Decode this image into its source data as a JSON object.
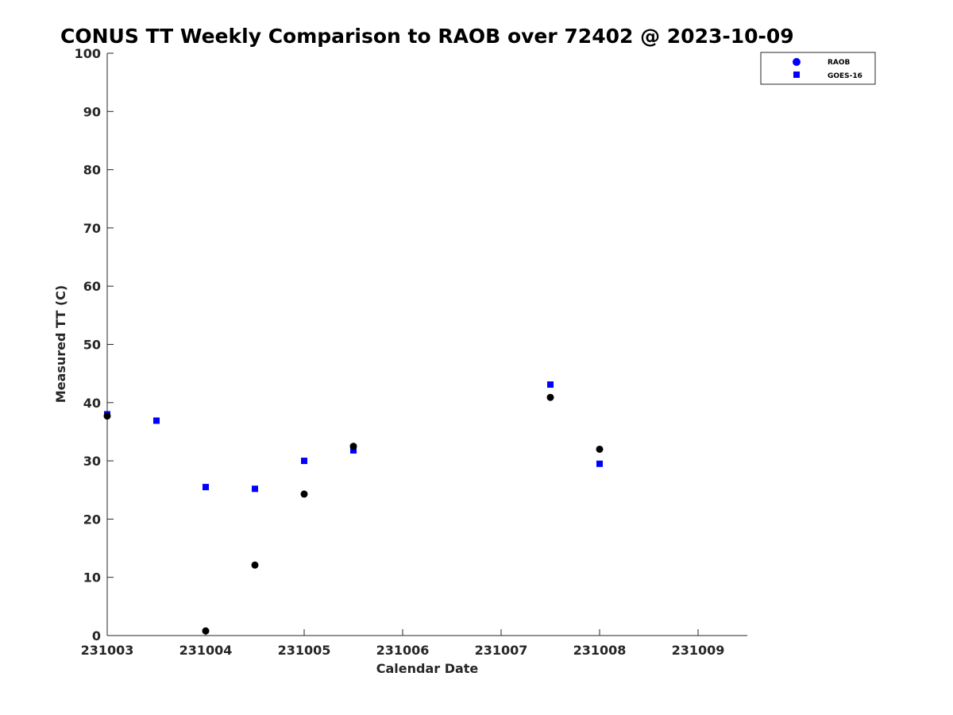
{
  "chart_data": {
    "type": "scatter",
    "title": "CONUS TT Weekly Comparison to RAOB over 72402 @ 2023-10-09",
    "xlabel": "Calendar Date",
    "ylabel": "Measured TT (C)",
    "xlim": [
      231003,
      231009.5
    ],
    "ylim": [
      0,
      100
    ],
    "x_ticks": [
      231003,
      231004,
      231005,
      231006,
      231007,
      231008,
      231009
    ],
    "x_tick_labels": [
      "231003",
      "231004",
      "231005",
      "231006",
      "231007",
      "231008",
      "231009"
    ],
    "y_ticks": [
      0,
      10,
      20,
      30,
      40,
      50,
      60,
      70,
      80,
      90,
      100
    ],
    "y_tick_labels": [
      "0",
      "10",
      "20",
      "30",
      "40",
      "50",
      "60",
      "70",
      "80",
      "90",
      "100"
    ],
    "grid": false,
    "legend_position": "top-right",
    "series": [
      {
        "name": "RAOB",
        "marker": "circle",
        "legend_color": "#0000ff",
        "points": [
          {
            "x": 231003.0,
            "y": 37.7
          },
          {
            "x": 231004.0,
            "y": 0.8
          },
          {
            "x": 231004.5,
            "y": 12.1
          },
          {
            "x": 231005.0,
            "y": 24.3
          },
          {
            "x": 231005.5,
            "y": 32.5
          },
          {
            "x": 231007.5,
            "y": 40.9
          },
          {
            "x": 231008.0,
            "y": 32.0
          }
        ]
      },
      {
        "name": "GOES-16",
        "marker": "square",
        "legend_color": "#0000ff",
        "points": [
          {
            "x": 231003.0,
            "y": 38.0
          },
          {
            "x": 231003.5,
            "y": 36.9
          },
          {
            "x": 231004.0,
            "y": 25.5
          },
          {
            "x": 231004.5,
            "y": 25.2
          },
          {
            "x": 231005.0,
            "y": 30.0
          },
          {
            "x": 231005.5,
            "y": 31.8
          },
          {
            "x": 231007.5,
            "y": 43.1
          },
          {
            "x": 231008.0,
            "y": 29.5
          }
        ]
      }
    ]
  },
  "colors": {
    "raob_marker": "#000000",
    "goes_marker": "#0000ff",
    "axis": "#262626",
    "legend_border": "#262626"
  }
}
